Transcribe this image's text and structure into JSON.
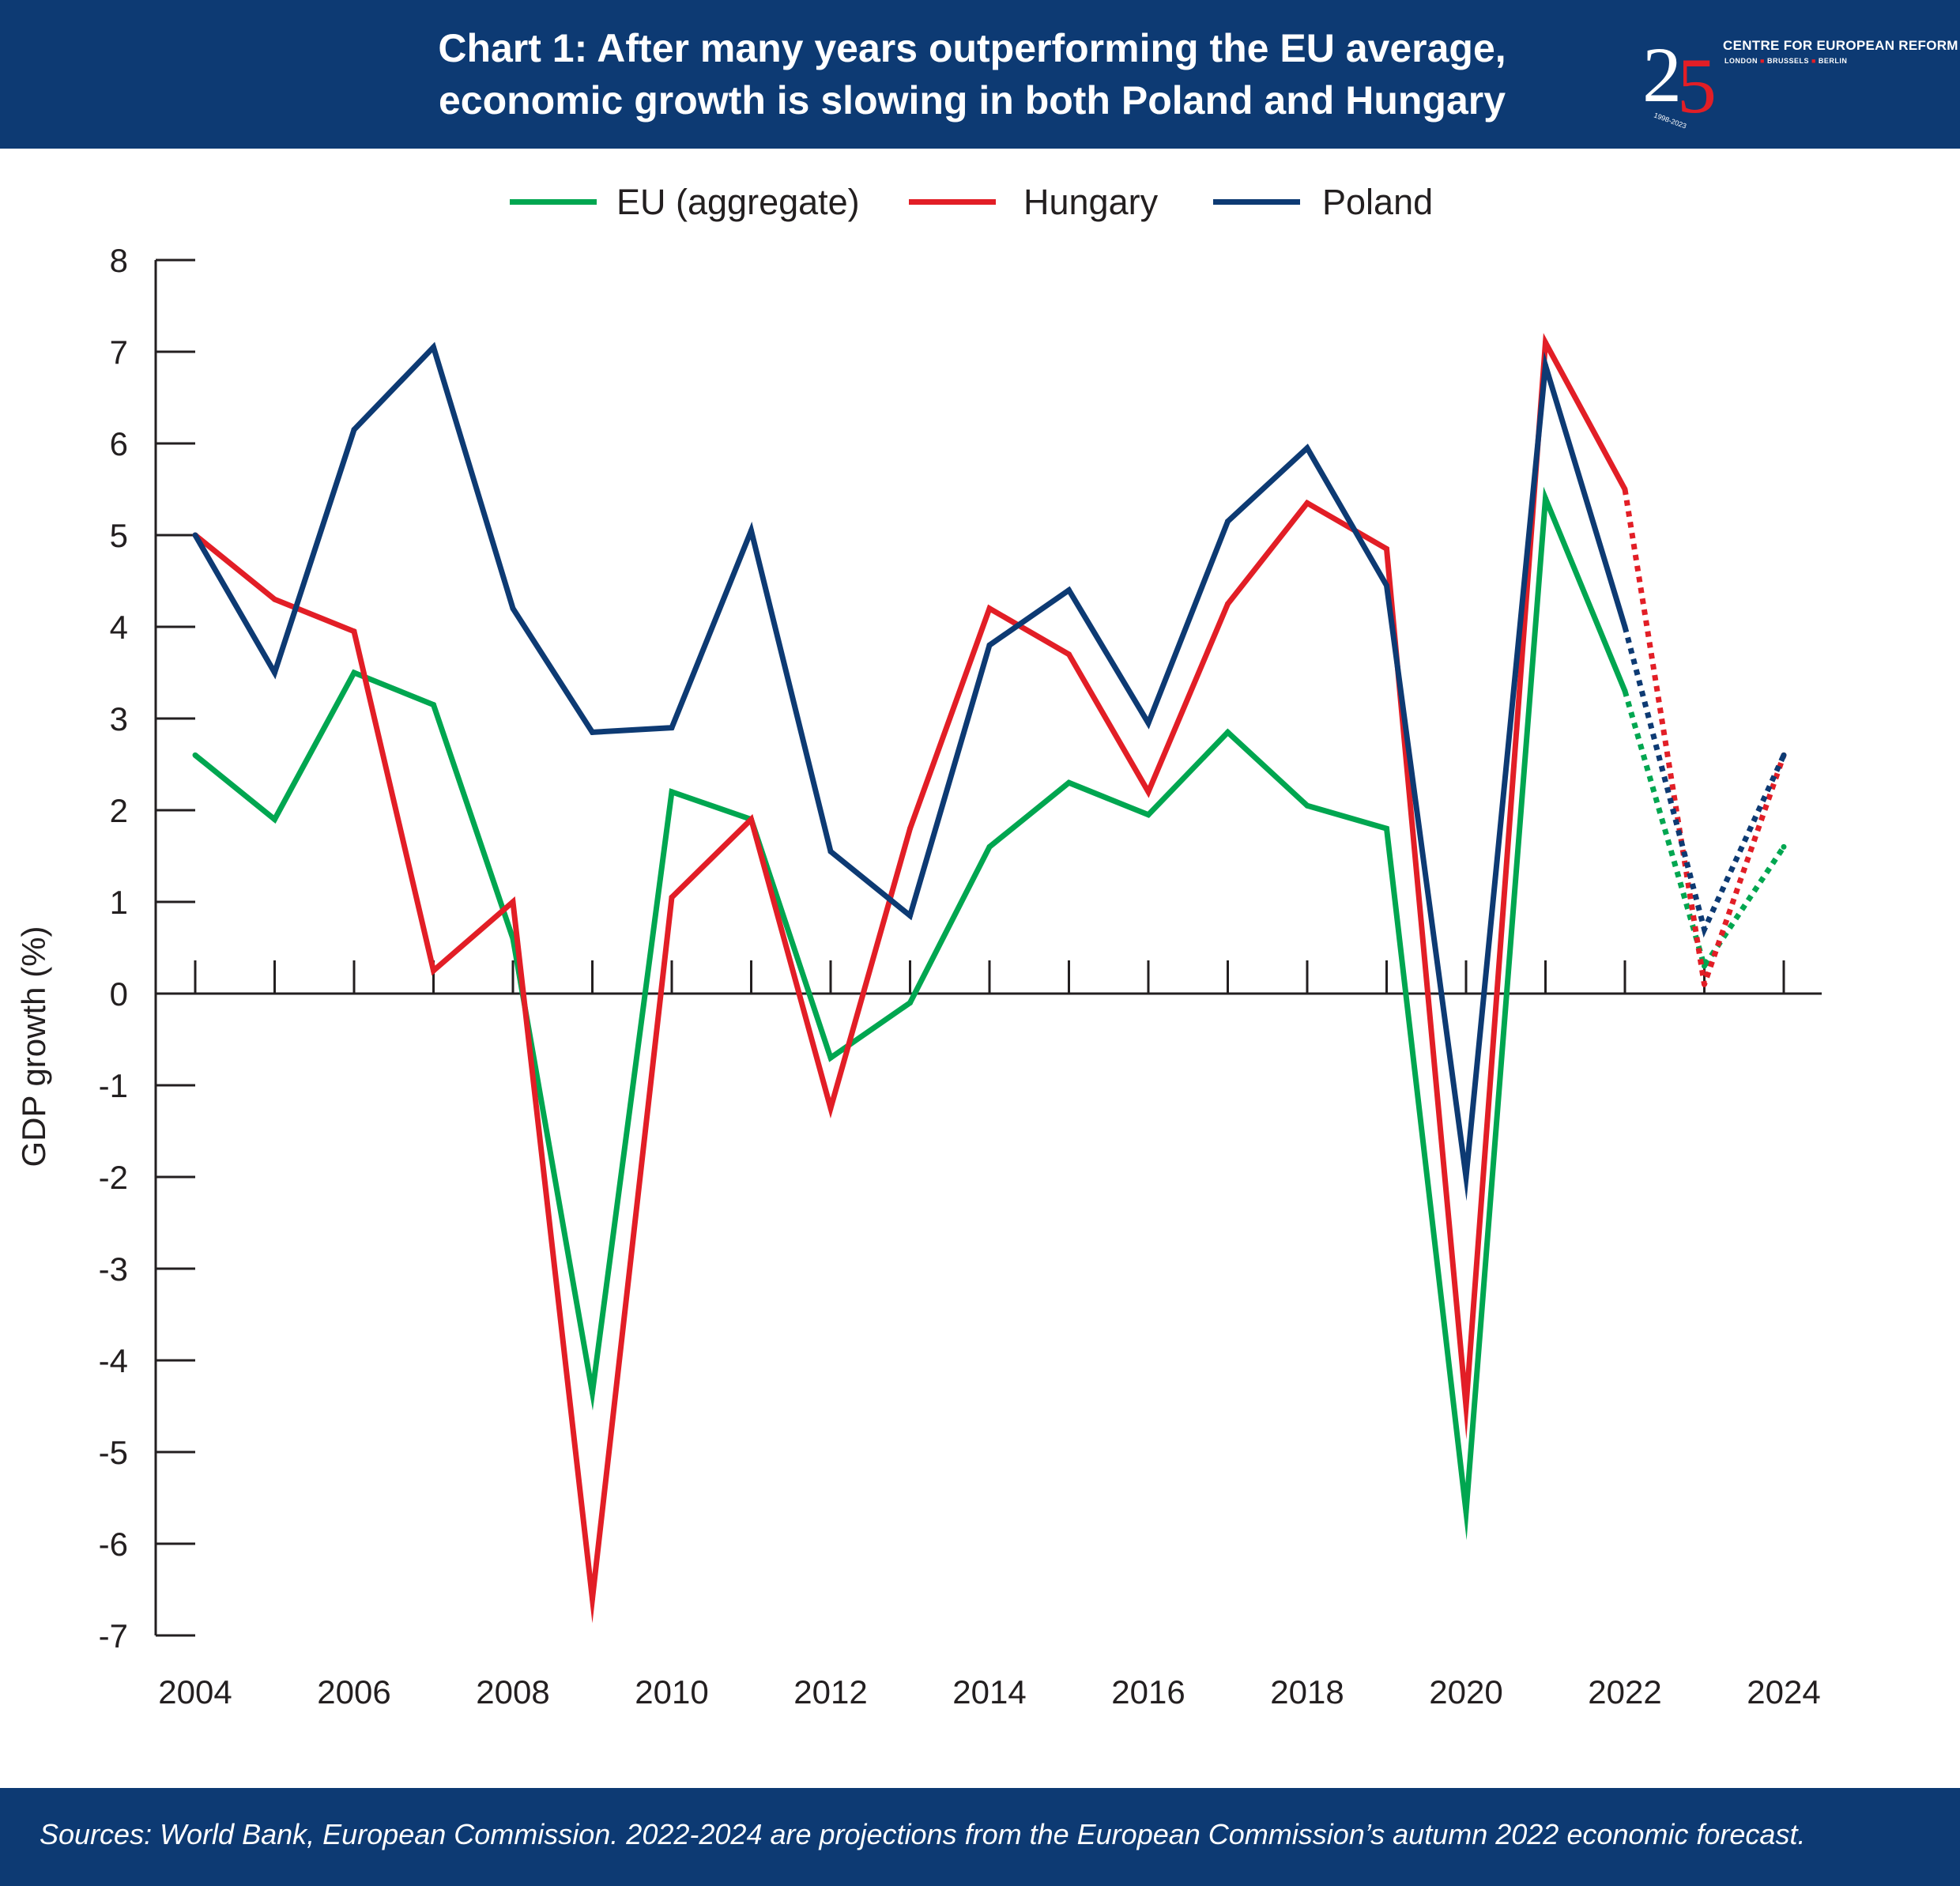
{
  "header": {
    "title_line1": "Chart 1: After many years outperforming the EU average,",
    "title_line2": "economic growth is slowing in both Poland and Hungary",
    "background_color": "#0d3a73"
  },
  "logo": {
    "number_left": "2",
    "number_right": "5",
    "organisation": "CENTRE FOR EUROPEAN REFORM",
    "cities": [
      "LONDON",
      "BRUSSELS",
      "BERLIN"
    ],
    "years": "1998-2023"
  },
  "footer": {
    "source": "Sources: World Bank, European Commission. 2022-2024 are projections from the European Commission’s autumn 2022 economic forecast."
  },
  "chart_data": {
    "type": "line",
    "title": "Chart 1: After many years outperforming the EU average, economic growth is slowing in both Poland and Hungary",
    "xlabel": "",
    "ylabel": "GDP growth (%)",
    "x": [
      2004,
      2005,
      2006,
      2007,
      2008,
      2009,
      2010,
      2011,
      2012,
      2013,
      2014,
      2015,
      2016,
      2017,
      2018,
      2019,
      2020,
      2021,
      2022,
      2023,
      2024
    ],
    "x_tick_labels": [
      "2004",
      "2006",
      "2008",
      "2010",
      "2012",
      "2014",
      "2016",
      "2018",
      "2020",
      "2022",
      "2024"
    ],
    "ylim": [
      -7,
      8
    ],
    "y_ticks": [
      8,
      7,
      6,
      5,
      4,
      3,
      2,
      1,
      0,
      -1,
      -2,
      -3,
      -4,
      -5,
      -6,
      -7
    ],
    "legend_position": "top-center",
    "projection_from": 2022,
    "projection_style": "dotted",
    "series": [
      {
        "name": "EU (aggregate)",
        "color": "#00a650",
        "values": [
          2.6,
          1.9,
          3.5,
          3.15,
          0.6,
          -4.35,
          2.2,
          1.9,
          -0.7,
          -0.1,
          1.6,
          2.3,
          1.95,
          2.85,
          2.05,
          1.8,
          -5.65,
          5.4,
          3.3,
          0.3,
          1.6
        ]
      },
      {
        "name": "Hungary",
        "color": "#e21e26",
        "values": [
          5.0,
          4.3,
          3.95,
          0.25,
          1.0,
          -6.6,
          1.05,
          1.9,
          -1.25,
          1.8,
          4.2,
          3.7,
          2.2,
          4.25,
          5.35,
          4.85,
          -4.5,
          7.1,
          5.5,
          0.1,
          2.6
        ]
      },
      {
        "name": "Poland",
        "color": "#0d3a73",
        "values": [
          5.0,
          3.5,
          6.15,
          7.05,
          4.2,
          2.85,
          2.9,
          5.05,
          1.55,
          0.85,
          3.8,
          4.4,
          2.95,
          5.15,
          5.95,
          4.45,
          -2.0,
          6.85,
          4.0,
          0.7,
          2.6
        ]
      }
    ]
  }
}
